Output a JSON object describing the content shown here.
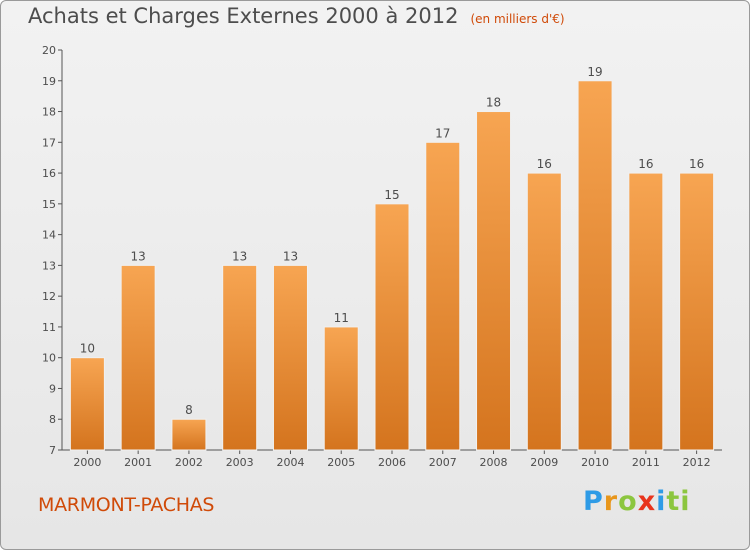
{
  "header": {
    "title": "Achats et Charges Externes 2000 à 2012",
    "unit": "(en milliers d'€)"
  },
  "footer": {
    "town": "MARMONT-PACHAS",
    "logo_text": "Proxiti"
  },
  "colors": {
    "bar_top": "#f7a552",
    "bar_bottom": "#d4741e",
    "accent": "#d04a08"
  },
  "chart_data": {
    "type": "bar",
    "categories": [
      "2000",
      "2001",
      "2002",
      "2003",
      "2004",
      "2005",
      "2006",
      "2007",
      "2008",
      "2009",
      "2010",
      "2011",
      "2012"
    ],
    "values": [
      10,
      13,
      8,
      13,
      13,
      11,
      15,
      17,
      18,
      16,
      19,
      16,
      16
    ],
    "title": "Achats et Charges Externes 2000 à 2012",
    "subtitle": "(en milliers d'€)",
    "xlabel": "",
    "ylabel": "",
    "ylim": [
      7,
      20
    ],
    "yticks": [
      7,
      8,
      9,
      10,
      11,
      12,
      13,
      14,
      15,
      16,
      17,
      18,
      19,
      20
    ],
    "grid": false,
    "data_labels": true
  }
}
